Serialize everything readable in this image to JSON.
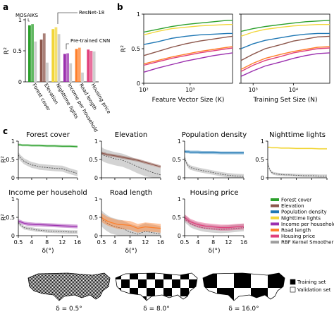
{
  "panel_labels": {
    "a": "a",
    "b": "b",
    "c": "c"
  },
  "colors": {
    "Forest cover": "#2ca02c",
    "Elevation": "#8c564b",
    "Population density": "#1f77b4",
    "Nighttime lights": "#f2d63a",
    "Income per household": "#9b2fae",
    "Road length": "#ff7f2a",
    "Housing price": "#e0407c",
    "RBF Kernel Smoother": "#9e9e9e"
  },
  "chart_data": [
    {
      "id": "a",
      "type": "bar",
      "ylabel": "R²",
      "ylim": [
        0,
        1
      ],
      "yticks": [
        "0",
        "0.5",
        "1"
      ],
      "categories": [
        "Forest cover",
        "Elevation",
        "Nighttime lights",
        "Income per household",
        "Road length",
        "Housing price"
      ],
      "series": [
        {
          "name": "MOSAIKS",
          "values": [
            0.91,
            0.68,
            0.85,
            0.45,
            0.53,
            0.52
          ]
        },
        {
          "name": "ResNet-18",
          "values": [
            0.93,
            0.78,
            0.88,
            0.46,
            0.55,
            0.5
          ]
        },
        {
          "name": "Pre-trained CNN",
          "values": [
            0.65,
            0.31,
            0.77,
            0.3,
            0.15,
            0.49
          ]
        }
      ],
      "annotations": [
        "MOSAIKS",
        "ResNet-18",
        "Pre-trained CNN"
      ]
    },
    {
      "id": "b1",
      "type": "line",
      "xscale": "log",
      "xlim": [
        100,
        8192
      ],
      "xticks": [
        100,
        1000
      ],
      "xtick_labels": [
        "10²",
        "10³"
      ],
      "xlabel": "Feature Vector Size (K)",
      "ylabel": "R²",
      "ylim": [
        0,
        1
      ],
      "yticks": [
        "0",
        "0.5",
        "1"
      ],
      "x": [
        100,
        200,
        400,
        800,
        1600,
        3200,
        6400,
        8192
      ],
      "series": [
        {
          "name": "Forest cover",
          "values": [
            0.74,
            0.78,
            0.82,
            0.85,
            0.87,
            0.89,
            0.91,
            0.91
          ]
        },
        {
          "name": "Nighttime lights",
          "values": [
            0.7,
            0.75,
            0.79,
            0.81,
            0.83,
            0.84,
            0.85,
            0.85
          ]
        },
        {
          "name": "Population density",
          "values": [
            0.56,
            0.6,
            0.65,
            0.68,
            0.7,
            0.71,
            0.72,
            0.72
          ]
        },
        {
          "name": "Elevation",
          "values": [
            0.4,
            0.46,
            0.52,
            0.57,
            0.61,
            0.64,
            0.67,
            0.68
          ]
        },
        {
          "name": "Road length",
          "values": [
            0.28,
            0.33,
            0.38,
            0.42,
            0.46,
            0.49,
            0.52,
            0.53
          ]
        },
        {
          "name": "Housing price",
          "values": [
            0.26,
            0.31,
            0.36,
            0.4,
            0.44,
            0.47,
            0.5,
            0.51
          ]
        },
        {
          "name": "Income per household",
          "values": [
            0.16,
            0.22,
            0.27,
            0.32,
            0.36,
            0.4,
            0.43,
            0.44
          ]
        }
      ]
    },
    {
      "id": "b2",
      "type": "line",
      "xscale": "log",
      "xlim": [
        500,
        80000
      ],
      "xticks": [
        1000,
        10000
      ],
      "xtick_labels": [
        "10³",
        "10⁴"
      ],
      "xlabel": "Training Set Size (N)",
      "ylim": [
        0,
        1
      ],
      "x": [
        500,
        1000,
        2000,
        5000,
        10000,
        20000,
        40000,
        80000
      ],
      "series": [
        {
          "name": "Forest cover",
          "values": [
            0.75,
            0.79,
            0.82,
            0.85,
            0.87,
            0.89,
            0.9,
            0.91
          ]
        },
        {
          "name": "Nighttime lights",
          "values": [
            0.68,
            0.74,
            0.78,
            0.81,
            0.83,
            0.84,
            0.85,
            0.85
          ]
        },
        {
          "name": "Population density",
          "values": [
            0.5,
            0.57,
            0.62,
            0.66,
            0.69,
            0.71,
            0.72,
            0.72
          ]
        },
        {
          "name": "Elevation",
          "values": [
            0.33,
            0.42,
            0.5,
            0.56,
            0.61,
            0.64,
            0.67,
            0.68
          ]
        },
        {
          "name": "Road length",
          "values": [
            0.2,
            0.29,
            0.36,
            0.42,
            0.46,
            0.49,
            0.52,
            0.53
          ]
        },
        {
          "name": "Housing price",
          "values": [
            0.17,
            0.26,
            0.33,
            0.39,
            0.44,
            0.47,
            0.5,
            0.51
          ]
        },
        {
          "name": "Income per household",
          "values": [
            0.1,
            0.18,
            0.25,
            0.31,
            0.36,
            0.4,
            0.43,
            0.44
          ]
        }
      ]
    },
    {
      "id": "c",
      "type": "line",
      "xlabel": "δ(°)",
      "ylabel": "R²",
      "ylim": [
        0,
        1
      ],
      "yticks": [
        "0",
        "0.5",
        "1"
      ],
      "xlim": [
        0.5,
        16
      ],
      "xticks": [
        0.5,
        4,
        8,
        12,
        16
      ],
      "xtick_labels": [
        "0.5",
        "4",
        "8",
        "12",
        "16"
      ],
      "x": [
        0.5,
        1,
        1.5,
        2,
        3,
        4,
        5,
        6,
        8,
        10,
        12,
        14,
        16
      ],
      "subplots": [
        {
          "title": "Forest cover",
          "series": "Forest cover",
          "values": [
            0.9,
            0.9,
            0.89,
            0.89,
            0.89,
            0.88,
            0.88,
            0.88,
            0.87,
            0.87,
            0.86,
            0.86,
            0.85
          ],
          "band": 0.03,
          "validation": [
            0.62,
            0.55,
            0.5,
            0.45,
            0.4,
            0.35,
            0.33,
            0.3,
            0.28,
            0.26,
            0.25,
            0.18,
            0.12
          ],
          "validation_band": 0.08
        },
        {
          "title": "Elevation",
          "series": "Elevation",
          "values": [
            0.68,
            0.66,
            0.65,
            0.63,
            0.62,
            0.6,
            0.58,
            0.56,
            0.52,
            0.48,
            0.42,
            0.36,
            0.3
          ],
          "band": 0.04,
          "validation": [
            0.66,
            0.62,
            0.6,
            0.58,
            0.55,
            0.52,
            0.5,
            0.48,
            0.4,
            0.3,
            0.22,
            0.14,
            0.08
          ],
          "validation_band": 0.18
        },
        {
          "title": "Population density",
          "series": "Population density",
          "values": [
            0.72,
            0.71,
            0.71,
            0.7,
            0.7,
            0.7,
            0.69,
            0.69,
            0.69,
            0.68,
            0.68,
            0.68,
            0.68
          ],
          "band": 0.04,
          "validation": [
            0.55,
            0.4,
            0.32,
            0.28,
            0.25,
            0.22,
            0.2,
            0.18,
            0.14,
            0.1,
            0.07,
            0.05,
            0.04
          ],
          "validation_band": 0.06
        },
        {
          "title": "Nighttime lights",
          "series": "Nighttime lights",
          "values": [
            0.83,
            0.83,
            0.82,
            0.82,
            0.82,
            0.81,
            0.81,
            0.81,
            0.8,
            0.8,
            0.8,
            0.79,
            0.79
          ],
          "band": 0.02,
          "validation": [
            0.4,
            0.22,
            0.15,
            0.12,
            0.1,
            0.09,
            0.08,
            0.08,
            0.07,
            0.06,
            0.06,
            0.05,
            0.05
          ],
          "validation_band": 0.04
        },
        {
          "title": "Income per household",
          "series": "Income per household",
          "values": [
            0.4,
            0.38,
            0.36,
            0.34,
            0.32,
            0.31,
            0.3,
            0.3,
            0.29,
            0.28,
            0.27,
            0.26,
            0.25
          ],
          "band": 0.05,
          "validation": [
            0.36,
            0.3,
            0.26,
            0.22,
            0.2,
            0.18,
            0.16,
            0.15,
            0.13,
            0.12,
            0.11,
            0.1,
            0.1
          ],
          "validation_band": 0.05
        },
        {
          "title": "Road length",
          "series": "Road length",
          "values": [
            0.5,
            0.46,
            0.43,
            0.4,
            0.36,
            0.33,
            0.3,
            0.3,
            0.28,
            0.2,
            0.24,
            0.22,
            0.2
          ],
          "band": 0.12,
          "validation": [
            0.48,
            0.42,
            0.38,
            0.34,
            0.28,
            0.25,
            0.22,
            0.2,
            0.1,
            0.04,
            0.12,
            0.08,
            0.04
          ],
          "validation_band": 0.22
        },
        {
          "title": "Housing price",
          "series": "Housing price",
          "values": [
            0.5,
            0.46,
            0.42,
            0.38,
            0.34,
            0.3,
            0.28,
            0.26,
            0.24,
            0.22,
            0.22,
            0.24,
            0.25
          ],
          "band": 0.08,
          "validation": [
            0.48,
            0.42,
            0.38,
            0.33,
            0.28,
            0.25,
            0.22,
            0.2,
            0.18,
            0.17,
            0.18,
            0.2,
            0.22
          ],
          "validation_band": 0.1
        }
      ],
      "legend": [
        "Forest cover",
        "Elevation",
        "Population density",
        "Nighttime lights",
        "Income per household",
        "Road length",
        "Housing price",
        "RBF Kernel Smoother"
      ],
      "legend_placement": "bottom-right"
    }
  ],
  "maps": {
    "deltas": [
      "δ = 0.5°",
      "δ = 8.0°",
      "δ = 16.0°"
    ],
    "legend": [
      "Training set",
      "Validation set"
    ]
  }
}
